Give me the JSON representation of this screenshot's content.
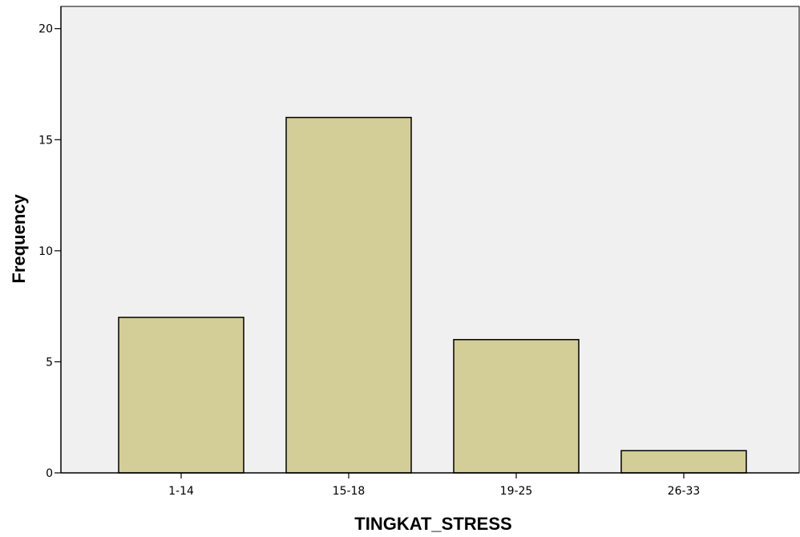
{
  "chart_data": {
    "type": "bar",
    "categories": [
      "1-14",
      "15-18",
      "19-25",
      "26-33"
    ],
    "values": [
      7,
      16,
      6,
      1
    ],
    "title": "",
    "xlabel": "TINGKAT_STRESS",
    "ylabel": "Frequency",
    "ylim": [
      0,
      21
    ],
    "yticks": [
      0,
      5,
      10,
      15,
      20
    ],
    "grid": false,
    "legend": "none",
    "colors": {
      "bar_fill": "#d3ce97",
      "plot_background": "#f0f0f0",
      "axis": "#000000"
    }
  }
}
